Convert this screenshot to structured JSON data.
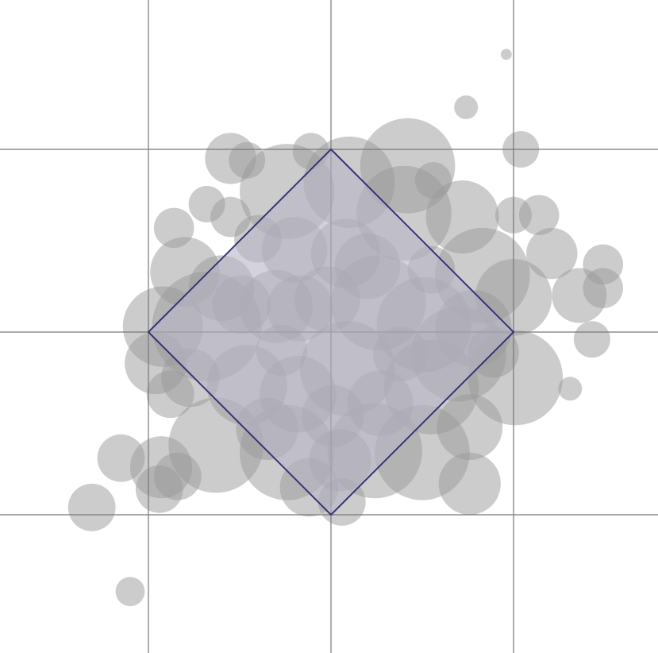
{
  "diagram": {
    "type": "bubble-scatter-with-diamond",
    "grid": {
      "enabled": true,
      "color": "#777777",
      "x": [
        -1,
        0,
        1
      ],
      "y": [
        -1,
        0,
        1
      ]
    },
    "diamond": {
      "vertices": [
        [
          0,
          1
        ],
        [
          1,
          0
        ],
        [
          0,
          -1
        ],
        [
          -1,
          0
        ]
      ],
      "stroke": "#35337a",
      "fill": "#b8b6c6"
    },
    "bubble_color": "#9a9a9a",
    "bubbles": [
      [
        0.96,
        1.52,
        0.03
      ],
      [
        0.74,
        1.23,
        0.065
      ],
      [
        1.04,
        1.0,
        0.1
      ],
      [
        -0.55,
        0.95,
        0.14
      ],
      [
        -0.46,
        0.94,
        0.1
      ],
      [
        -0.24,
        0.77,
        0.26
      ],
      [
        -0.11,
        0.99,
        0.1
      ],
      [
        0.1,
        0.82,
        0.25
      ],
      [
        0.42,
        0.91,
        0.26
      ],
      [
        0.56,
        0.83,
        0.1
      ],
      [
        0.4,
        0.65,
        0.26
      ],
      [
        0.72,
        0.63,
        0.2
      ],
      [
        1.0,
        0.64,
        0.1
      ],
      [
        1.14,
        0.64,
        0.11
      ],
      [
        1.21,
        0.43,
        0.14
      ],
      [
        1.36,
        0.2,
        0.15
      ],
      [
        1.49,
        0.37,
        0.11
      ],
      [
        1.49,
        0.24,
        0.11
      ],
      [
        1.43,
        -0.04,
        0.1
      ],
      [
        1.31,
        -0.31,
        0.065
      ],
      [
        -0.68,
        0.7,
        0.1
      ],
      [
        -0.86,
        0.57,
        0.11
      ],
      [
        -0.55,
        0.63,
        0.11
      ],
      [
        -0.4,
        0.51,
        0.13
      ],
      [
        -0.2,
        0.45,
        0.18
      ],
      [
        0.08,
        0.43,
        0.19
      ],
      [
        0.2,
        0.36,
        0.18
      ],
      [
        0.55,
        0.34,
        0.13
      ],
      [
        0.83,
        0.31,
        0.26
      ],
      [
        1.0,
        0.19,
        0.21
      ],
      [
        -0.8,
        0.33,
        0.19
      ],
      [
        -0.6,
        0.24,
        0.18
      ],
      [
        -0.49,
        0.15,
        0.16
      ],
      [
        -0.3,
        0.14,
        0.2
      ],
      [
        -0.17,
        0.13,
        0.18
      ],
      [
        -0.02,
        0.18,
        0.18
      ],
      [
        0.26,
        0.16,
        0.26
      ],
      [
        0.51,
        0.04,
        0.26
      ],
      [
        0.78,
        0.02,
        0.21
      ],
      [
        -0.92,
        0.03,
        0.22
      ],
      [
        -0.68,
        0.03,
        0.3
      ],
      [
        -0.27,
        -0.1,
        0.14
      ],
      [
        0.09,
        -0.2,
        0.26
      ],
      [
        0.38,
        -0.12,
        0.15
      ],
      [
        0.7,
        -0.12,
        0.26
      ],
      [
        0.89,
        -0.11,
        0.14
      ],
      [
        1.01,
        -0.25,
        0.26
      ],
      [
        -0.96,
        -0.17,
        0.17
      ],
      [
        -0.77,
        -0.25,
        0.16
      ],
      [
        -0.88,
        -0.34,
        0.13
      ],
      [
        -0.46,
        -0.29,
        0.22
      ],
      [
        -0.18,
        -0.34,
        0.21
      ],
      [
        0.01,
        -0.46,
        0.17
      ],
      [
        0.27,
        -0.39,
        0.18
      ],
      [
        0.55,
        -0.3,
        0.26
      ],
      [
        0.76,
        -0.52,
        0.18
      ],
      [
        -1.15,
        -0.69,
        0.13
      ],
      [
        -0.93,
        -0.74,
        0.17
      ],
      [
        -0.84,
        -0.79,
        0.13
      ],
      [
        -0.94,
        -0.86,
        0.13
      ],
      [
        -0.63,
        -0.62,
        0.26
      ],
      [
        -0.35,
        -0.53,
        0.17
      ],
      [
        -0.24,
        -0.66,
        0.26
      ],
      [
        -0.12,
        -0.85,
        0.16
      ],
      [
        0.05,
        -0.7,
        0.17
      ],
      [
        0.24,
        -0.65,
        0.26
      ],
      [
        0.5,
        -0.66,
        0.26
      ],
      [
        0.76,
        -0.83,
        0.17
      ],
      [
        0.06,
        -0.93,
        0.13
      ],
      [
        -1.31,
        -0.96,
        0.13
      ],
      [
        -1.1,
        -1.42,
        0.08
      ]
    ]
  }
}
